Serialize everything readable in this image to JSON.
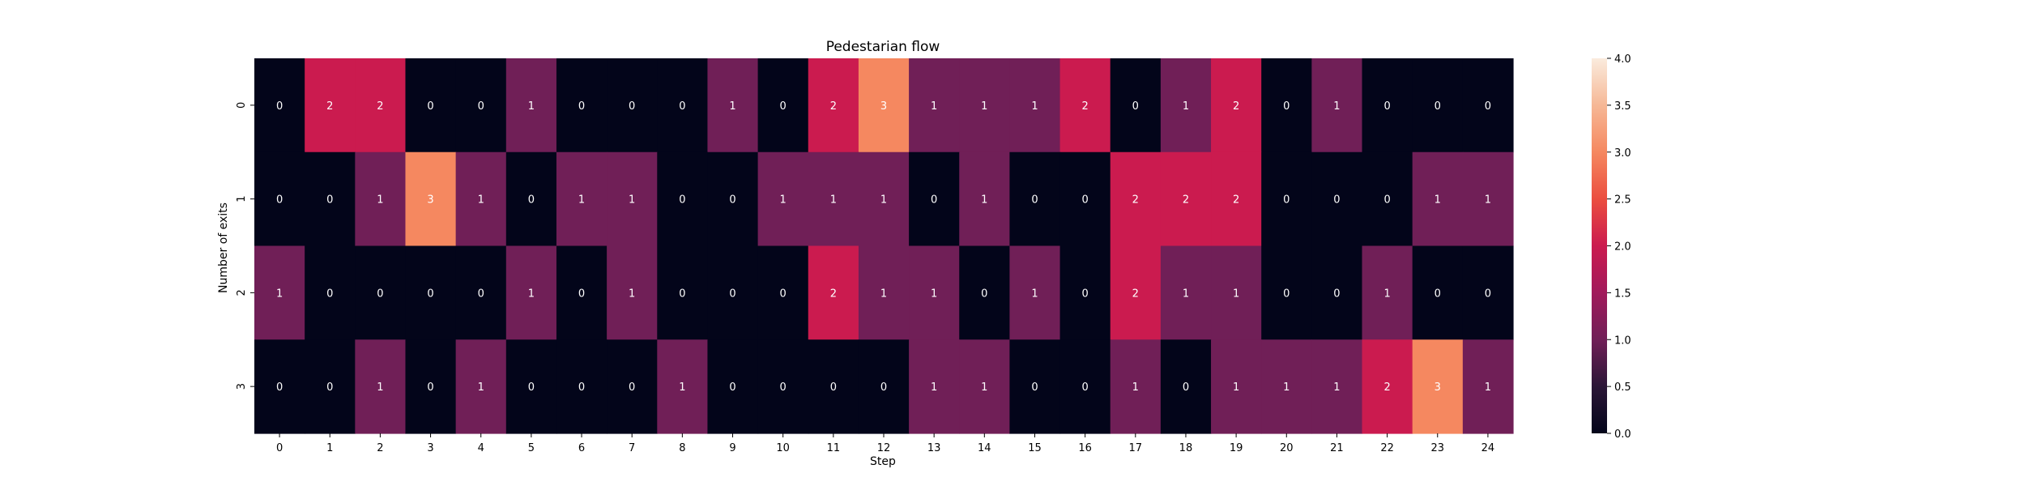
{
  "chart_data": {
    "type": "heatmap",
    "title": "Pedestarian flow",
    "xlabel": "Step",
    "ylabel": "Number of exits",
    "x_categories": [
      "0",
      "1",
      "2",
      "3",
      "4",
      "5",
      "6",
      "7",
      "8",
      "9",
      "10",
      "11",
      "12",
      "13",
      "14",
      "15",
      "16",
      "17",
      "18",
      "19",
      "20",
      "21",
      "22",
      "23",
      "24"
    ],
    "y_categories": [
      "0",
      "1",
      "2",
      "3"
    ],
    "values": [
      [
        0,
        2,
        2,
        0,
        0,
        1,
        0,
        0,
        0,
        1,
        0,
        2,
        3,
        1,
        1,
        1,
        2,
        0,
        1,
        2,
        0,
        1,
        0,
        0,
        0
      ],
      [
        0,
        0,
        1,
        3,
        1,
        0,
        1,
        1,
        0,
        0,
        1,
        1,
        1,
        0,
        1,
        0,
        0,
        2,
        2,
        2,
        0,
        0,
        0,
        1,
        1
      ],
      [
        1,
        0,
        0,
        0,
        0,
        1,
        0,
        1,
        0,
        0,
        0,
        2,
        1,
        1,
        0,
        1,
        0,
        2,
        1,
        1,
        0,
        0,
        1,
        0,
        0
      ],
      [
        0,
        0,
        1,
        0,
        1,
        0,
        0,
        0,
        1,
        0,
        0,
        0,
        0,
        1,
        1,
        0,
        0,
        1,
        0,
        1,
        1,
        1,
        2,
        3,
        1
      ]
    ],
    "annotate": true,
    "colorbar": {
      "range": [
        0,
        4
      ],
      "ticks": [
        "0.0",
        "0.5",
        "1.0",
        "1.5",
        "2.0",
        "2.5",
        "3.0",
        "3.5",
        "4.0"
      ],
      "colormap": "rocket"
    }
  }
}
